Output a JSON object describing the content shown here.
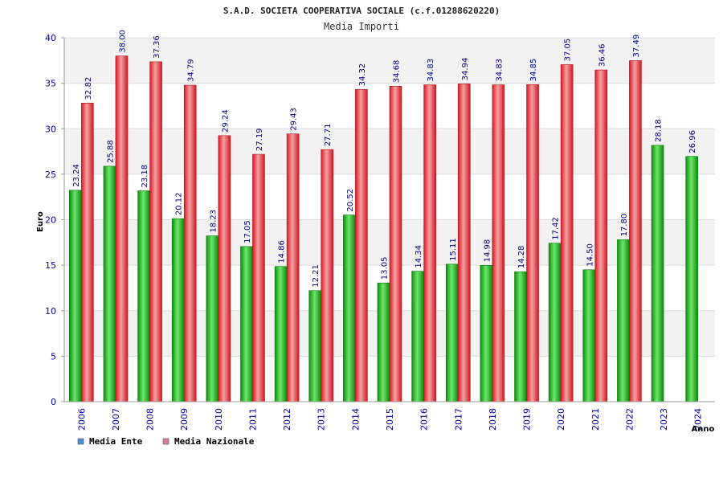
{
  "chart_data": {
    "type": "bar",
    "title": "S.A.D. SOCIETA COOPERATIVA SOCIALE (c.f.01288620220)",
    "subtitle": "Media Importi",
    "ylabel": "Euro",
    "xlabel": "Anno",
    "ylim": [
      0,
      40
    ],
    "yticks": [
      0,
      5,
      10,
      15,
      20,
      25,
      30,
      35,
      40
    ],
    "categories": [
      "2006",
      "2007",
      "2008",
      "2009",
      "2010",
      "2011",
      "2012",
      "2013",
      "2014",
      "2015",
      "2016",
      "2017",
      "2018",
      "2019",
      "2020",
      "2021",
      "2022",
      "2023",
      "2024"
    ],
    "series": [
      {
        "name": "Media Ente",
        "color": "#1aa51a",
        "values": [
          23.24,
          25.88,
          23.18,
          20.12,
          18.23,
          17.05,
          14.86,
          12.21,
          20.52,
          13.05,
          14.34,
          15.11,
          14.98,
          14.28,
          17.42,
          14.5,
          17.8,
          28.18,
          26.96
        ],
        "labels": [
          "23.24",
          "25.88",
          "23.18",
          "20.12",
          "18.23",
          "17.05",
          "14.86",
          "12.21",
          "20.52",
          "13.05",
          "14.34",
          "15.11",
          "14.98",
          "14.28",
          "17.42",
          "14.50",
          "17.80",
          "28.18",
          "26.96"
        ]
      },
      {
        "name": "Media Nazionale",
        "color": "#e0303a",
        "values": [
          32.82,
          38.0,
          37.36,
          34.79,
          29.24,
          27.19,
          29.43,
          27.71,
          34.32,
          34.68,
          34.83,
          34.94,
          34.83,
          34.85,
          37.05,
          36.46,
          37.49,
          null,
          null
        ],
        "labels": [
          "32.82",
          "38.00",
          "37.36",
          "34.79",
          "29.24",
          "27.19",
          "29.43",
          "27.71",
          "34.32",
          "34.68",
          "34.83",
          "34.94",
          "34.83",
          "34.85",
          "37.05",
          "36.46",
          "37.49",
          null,
          null
        ]
      }
    ],
    "legend": [
      {
        "label": "Media Ente",
        "color": "#4a90e2"
      },
      {
        "label": "Media Nazionale",
        "color": "#e07aa8"
      }
    ],
    "grid": true,
    "legend_position": "bottom-left"
  }
}
